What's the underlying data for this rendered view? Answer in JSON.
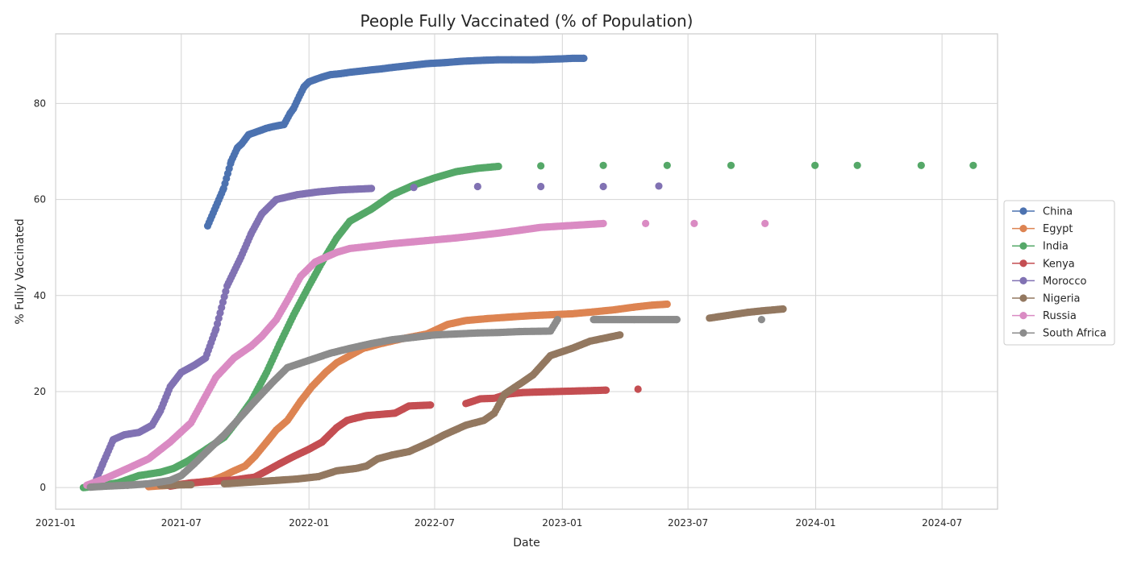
{
  "chart_data": {
    "type": "scatter",
    "title": "People Fully Vaccinated (% of Population)",
    "xlabel": "Date",
    "ylabel": "% Fully Vaccinated",
    "x_type": "date",
    "xlim": [
      "2021-01-01",
      "2024-09-19"
    ],
    "ylim": [
      -4.5,
      94.5
    ],
    "x_ticks": [
      "2021-01",
      "2021-07",
      "2022-01",
      "2022-07",
      "2023-01",
      "2023-07",
      "2024-01",
      "2024-07"
    ],
    "y_ticks": [
      0,
      20,
      40,
      60,
      80
    ],
    "grid": true,
    "legend_position": "right (outside plot)",
    "series": [
      {
        "name": "China",
        "color": "#4c72b0",
        "points": [
          [
            "2021-08-08",
            54.5
          ],
          [
            "2021-08-31",
            62.3
          ],
          [
            "2021-09-11",
            68.0
          ],
          [
            "2021-09-20",
            70.8
          ],
          [
            "2021-09-26",
            71.6
          ],
          [
            "2021-10-06",
            73.5
          ],
          [
            "2021-10-31",
            74.8
          ],
          [
            "2021-11-05",
            75.0
          ],
          [
            "2021-11-11",
            75.2
          ],
          [
            "2021-11-18",
            75.4
          ],
          [
            "2021-11-26",
            75.6
          ],
          [
            "2021-12-05",
            78.0
          ],
          [
            "2021-12-10",
            79.0
          ],
          [
            "2021-12-18",
            81.5
          ],
          [
            "2021-12-25",
            83.5
          ],
          [
            "2022-01-01",
            84.5
          ],
          [
            "2022-01-10",
            85.0
          ],
          [
            "2022-01-20",
            85.5
          ],
          [
            "2022-02-01",
            86.0
          ],
          [
            "2022-02-15",
            86.2
          ],
          [
            "2022-03-01",
            86.5
          ],
          [
            "2022-03-20",
            86.8
          ],
          [
            "2022-04-01",
            87.0
          ],
          [
            "2022-04-15",
            87.2
          ],
          [
            "2022-05-01",
            87.5
          ],
          [
            "2022-05-20",
            87.8
          ],
          [
            "2022-06-01",
            88.0
          ],
          [
            "2022-06-20",
            88.3
          ],
          [
            "2022-07-15",
            88.5
          ],
          [
            "2022-08-10",
            88.8
          ],
          [
            "2022-09-10",
            89.0
          ],
          [
            "2022-10-01",
            89.1
          ],
          [
            "2022-10-20",
            89.1
          ],
          [
            "2022-11-20",
            89.1
          ],
          [
            "2022-12-10",
            89.2
          ],
          [
            "2023-01-01",
            89.3
          ],
          [
            "2023-01-15",
            89.4
          ],
          [
            "2023-02-01",
            89.4
          ]
        ]
      },
      {
        "name": "Egypt",
        "color": "#dd8452",
        "points": [
          [
            "2021-05-15",
            0.2
          ],
          [
            "2021-06-15",
            0.5
          ],
          [
            "2021-07-15",
            0.9
          ],
          [
            "2021-08-15",
            1.5
          ],
          [
            "2021-09-01",
            2.5
          ],
          [
            "2021-09-15",
            3.5
          ],
          [
            "2021-10-01",
            4.5
          ],
          [
            "2021-10-15",
            6.5
          ],
          [
            "2021-11-01",
            9.5
          ],
          [
            "2021-11-15",
            12.0
          ],
          [
            "2021-12-01",
            14.0
          ],
          [
            "2021-12-20",
            18.0
          ],
          [
            "2022-01-05",
            21.0
          ],
          [
            "2022-01-25",
            24.0
          ],
          [
            "2022-02-10",
            26.0
          ],
          [
            "2022-03-01",
            27.5
          ],
          [
            "2022-03-20",
            29.0
          ],
          [
            "2022-04-15",
            30.0
          ],
          [
            "2022-05-15",
            31.0
          ],
          [
            "2022-06-20",
            32.0
          ],
          [
            "2022-07-20",
            34.0
          ],
          [
            "2022-08-15",
            34.8
          ],
          [
            "2022-09-15",
            35.2
          ],
          [
            "2022-10-15",
            35.5
          ],
          [
            "2022-11-15",
            35.8
          ],
          [
            "2022-12-15",
            36.0
          ],
          [
            "2023-01-15",
            36.2
          ],
          [
            "2023-02-15",
            36.6
          ],
          [
            "2023-03-15",
            37.0
          ],
          [
            "2023-04-15",
            37.6
          ],
          [
            "2023-05-10",
            38.0
          ],
          [
            "2023-06-01",
            38.2
          ]
        ]
      },
      {
        "name": "India",
        "color": "#55a868",
        "points": [
          [
            "2021-02-10",
            0.0
          ],
          [
            "2021-03-01",
            0.3
          ],
          [
            "2021-04-01",
            1.0
          ],
          [
            "2021-05-01",
            2.5
          ],
          [
            "2021-06-01",
            3.2
          ],
          [
            "2021-06-20",
            4.0
          ],
          [
            "2021-07-10",
            5.5
          ],
          [
            "2021-08-01",
            7.5
          ],
          [
            "2021-09-01",
            10.5
          ],
          [
            "2021-09-20",
            14.0
          ],
          [
            "2021-10-10",
            18.0
          ],
          [
            "2021-11-01",
            24.0
          ],
          [
            "2021-11-20",
            30.0
          ],
          [
            "2021-12-10",
            36.0
          ],
          [
            "2022-01-01",
            42.0
          ],
          [
            "2022-01-20",
            47.0
          ],
          [
            "2022-02-10",
            52.0
          ],
          [
            "2022-03-01",
            55.5
          ],
          [
            "2022-04-01",
            58.0
          ],
          [
            "2022-05-01",
            61.0
          ],
          [
            "2022-06-01",
            63.0
          ],
          [
            "2022-07-01",
            64.5
          ],
          [
            "2022-08-01",
            65.8
          ],
          [
            "2022-09-01",
            66.5
          ],
          [
            "2022-10-01",
            66.9
          ],
          [
            "2022-12-01",
            67.0
          ],
          [
            "2023-03-01",
            67.1
          ],
          [
            "2023-06-01",
            67.1
          ],
          [
            "2023-09-01",
            67.1
          ],
          [
            "2023-12-31",
            67.1
          ],
          [
            "2024-03-01",
            67.1
          ],
          [
            "2024-06-01",
            67.1
          ],
          [
            "2024-08-15",
            67.1
          ]
        ]
      },
      {
        "name": "Kenya",
        "color": "#c44e52",
        "points": [
          [
            "2021-06-15",
            0.3
          ],
          [
            "2021-07-15",
            1.0
          ],
          [
            "2021-08-15",
            1.3
          ],
          [
            "2021-09-15",
            1.6
          ],
          [
            "2021-10-15",
            2.2
          ],
          [
            "2021-11-01",
            3.5
          ],
          [
            "2021-11-20",
            5.0
          ],
          [
            "2021-12-10",
            6.5
          ],
          [
            "2022-01-01",
            8.0
          ],
          [
            "2022-01-20",
            9.5
          ],
          [
            "2022-02-10",
            12.5
          ],
          [
            "2022-02-25",
            14.0
          ],
          [
            "2022-03-10",
            14.5
          ],
          [
            "2022-03-25",
            15.0
          ],
          [
            "2022-05-05",
            15.5
          ],
          [
            "2022-05-25",
            17.0
          ],
          [
            "2022-06-25",
            17.2
          ],
          [
            "2022-08-15",
            17.5
          ],
          [
            "2022-09-05",
            18.5
          ],
          [
            "2022-09-25",
            18.6
          ],
          [
            "2022-10-15",
            19.5
          ],
          [
            "2022-11-05",
            19.8
          ],
          [
            "2022-11-25",
            19.9
          ],
          [
            "2022-12-20",
            20.0
          ],
          [
            "2023-01-15",
            20.1
          ],
          [
            "2023-02-10",
            20.2
          ],
          [
            "2023-03-05",
            20.3
          ],
          [
            "2023-04-20",
            20.5
          ]
        ]
      },
      {
        "name": "Morocco",
        "color": "#8172b3",
        "points": [
          [
            "2021-02-25",
            0.5
          ],
          [
            "2021-03-10",
            5.0
          ],
          [
            "2021-03-25",
            10.0
          ],
          [
            "2021-04-10",
            11.0
          ],
          [
            "2021-05-01",
            11.5
          ],
          [
            "2021-05-20",
            13.0
          ],
          [
            "2021-06-01",
            16.0
          ],
          [
            "2021-06-15",
            21.0
          ],
          [
            "2021-07-01",
            24.0
          ],
          [
            "2021-07-20",
            25.5
          ],
          [
            "2021-08-05",
            27.0
          ],
          [
            "2021-08-20",
            33.0
          ],
          [
            "2021-09-05",
            42.0
          ],
          [
            "2021-09-25",
            48.0
          ],
          [
            "2021-10-10",
            53.0
          ],
          [
            "2021-10-25",
            57.0
          ],
          [
            "2021-11-15",
            60.0
          ],
          [
            "2021-12-15",
            61.0
          ],
          [
            "2022-01-15",
            61.6
          ],
          [
            "2022-02-15",
            62.0
          ],
          [
            "2022-04-01",
            62.3
          ],
          [
            "2022-06-01",
            62.5
          ],
          [
            "2022-09-01",
            62.7
          ],
          [
            "2022-12-01",
            62.7
          ],
          [
            "2023-03-01",
            62.7
          ],
          [
            "2023-05-20",
            62.8
          ]
        ]
      },
      {
        "name": "Nigeria",
        "color": "#937860",
        "points": [
          [
            "2021-04-15",
            0.5
          ],
          [
            "2021-06-01",
            0.5
          ],
          [
            "2021-07-15",
            0.6
          ],
          [
            "2021-09-01",
            0.8
          ],
          [
            "2021-10-15",
            1.2
          ],
          [
            "2021-11-15",
            1.5
          ],
          [
            "2021-12-15",
            1.8
          ],
          [
            "2022-01-15",
            2.3
          ],
          [
            "2022-02-10",
            3.5
          ],
          [
            "2022-03-10",
            4.0
          ],
          [
            "2022-03-25",
            4.5
          ],
          [
            "2022-04-10",
            6.0
          ],
          [
            "2022-05-01",
            6.8
          ],
          [
            "2022-05-25",
            7.5
          ],
          [
            "2022-06-25",
            9.5
          ],
          [
            "2022-07-15",
            11.0
          ],
          [
            "2022-08-15",
            13.0
          ],
          [
            "2022-09-10",
            14.0
          ],
          [
            "2022-09-25",
            15.5
          ],
          [
            "2022-10-10",
            19.5
          ],
          [
            "2022-11-05",
            22.0
          ],
          [
            "2022-11-20",
            23.5
          ],
          [
            "2022-12-15",
            27.5
          ],
          [
            "2023-01-15",
            29.0
          ],
          [
            "2023-02-10",
            30.5
          ],
          [
            "2023-03-25",
            31.8
          ],
          [
            "2023-08-01",
            35.3
          ],
          [
            "2023-08-15",
            35.6
          ],
          [
            "2023-09-25",
            36.5
          ],
          [
            "2023-10-15",
            36.8
          ],
          [
            "2023-11-15",
            37.2
          ]
        ]
      },
      {
        "name": "Russia",
        "color": "#da8bc3",
        "points": [
          [
            "2021-02-15",
            0.5
          ],
          [
            "2021-03-15",
            2.0
          ],
          [
            "2021-04-15",
            4.0
          ],
          [
            "2021-05-15",
            6.0
          ],
          [
            "2021-06-15",
            9.5
          ],
          [
            "2021-07-15",
            13.5
          ],
          [
            "2021-08-01",
            18.0
          ],
          [
            "2021-08-20",
            23.0
          ],
          [
            "2021-09-15",
            27.0
          ],
          [
            "2021-10-10",
            29.5
          ],
          [
            "2021-10-25",
            31.5
          ],
          [
            "2021-11-15",
            35.0
          ],
          [
            "2021-12-01",
            39.0
          ],
          [
            "2021-12-20",
            44.0
          ],
          [
            "2022-01-10",
            47.0
          ],
          [
            "2022-02-10",
            49.0
          ],
          [
            "2022-03-01",
            49.8
          ],
          [
            "2022-04-01",
            50.3
          ],
          [
            "2022-05-01",
            50.8
          ],
          [
            "2022-06-01",
            51.2
          ],
          [
            "2022-07-01",
            51.6
          ],
          [
            "2022-08-01",
            52.0
          ],
          [
            "2022-09-01",
            52.5
          ],
          [
            "2022-10-01",
            53.0
          ],
          [
            "2022-11-01",
            53.6
          ],
          [
            "2022-12-01",
            54.2
          ],
          [
            "2023-01-15",
            54.6
          ],
          [
            "2023-03-01",
            55.0
          ],
          [
            "2023-05-01",
            55.0
          ],
          [
            "2023-07-10",
            55.0
          ],
          [
            "2023-10-20",
            55.0
          ]
        ]
      },
      {
        "name": "South Africa",
        "color": "#8c8c8c",
        "points": [
          [
            "2021-02-20",
            0.1
          ],
          [
            "2021-03-15",
            0.3
          ],
          [
            "2021-04-15",
            0.5
          ],
          [
            "2021-05-15",
            0.8
          ],
          [
            "2021-06-15",
            1.5
          ],
          [
            "2021-07-01",
            2.5
          ],
          [
            "2021-07-20",
            5.0
          ],
          [
            "2021-08-10",
            8.0
          ],
          [
            "2021-09-01",
            11.0
          ],
          [
            "2021-09-20",
            14.0
          ],
          [
            "2021-10-15",
            18.0
          ],
          [
            "2021-11-10",
            22.0
          ],
          [
            "2021-12-01",
            25.0
          ],
          [
            "2022-01-01",
            26.5
          ],
          [
            "2022-02-01",
            28.0
          ],
          [
            "2022-03-01",
            29.0
          ],
          [
            "2022-04-01",
            30.0
          ],
          [
            "2022-05-01",
            30.8
          ],
          [
            "2022-06-01",
            31.3
          ],
          [
            "2022-07-01",
            31.8
          ],
          [
            "2022-08-01",
            32.0
          ],
          [
            "2022-09-01",
            32.2
          ],
          [
            "2022-10-01",
            32.3
          ],
          [
            "2022-11-01",
            32.5
          ],
          [
            "2022-12-15",
            32.6
          ],
          [
            "2022-12-25",
            35.0
          ],
          [
            "2023-02-15",
            35.0
          ],
          [
            "2023-03-15",
            35.0
          ],
          [
            "2023-04-15",
            35.0
          ],
          [
            "2023-05-15",
            35.0
          ],
          [
            "2023-06-15",
            35.0
          ],
          [
            "2023-10-15",
            35.0
          ]
        ]
      }
    ]
  }
}
